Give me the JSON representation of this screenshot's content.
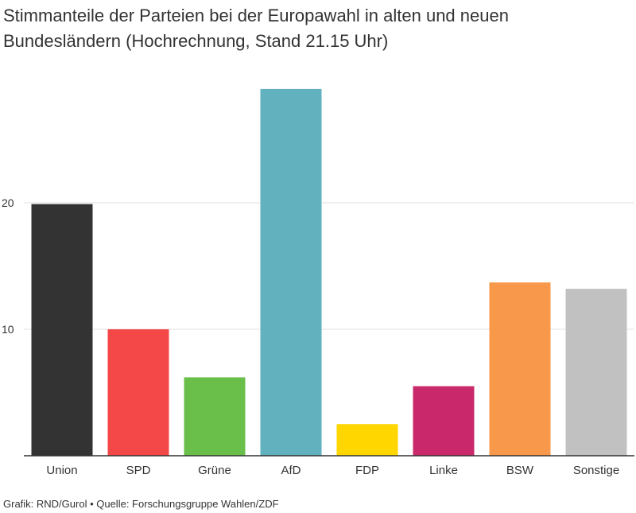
{
  "chart_data": {
    "type": "bar",
    "title": "Stimmanteile der Parteien bei der Europawahl in alten und neuen Bundesländern (Hochrechnung, Stand 21.15 Uhr)",
    "categories": [
      "Union",
      "SPD",
      "Grüne",
      "AfD",
      "FDP",
      "Linke",
      "BSW",
      "Sonstige"
    ],
    "values": [
      19.9,
      10.0,
      6.2,
      29.0,
      2.5,
      5.5,
      13.7,
      13.2
    ],
    "colors": [
      "#333333",
      "#f44848",
      "#6abe4a",
      "#62b1bf",
      "#ffd600",
      "#c9286a",
      "#f7984a",
      "#c1c1c1"
    ],
    "yticks": [
      10,
      20
    ],
    "ylim": [
      0,
      30
    ],
    "grid": true,
    "legend": "none"
  },
  "footer": "Grafik: RND/Gurol • Quelle: Forschungsgruppe Wahlen/ZDF"
}
